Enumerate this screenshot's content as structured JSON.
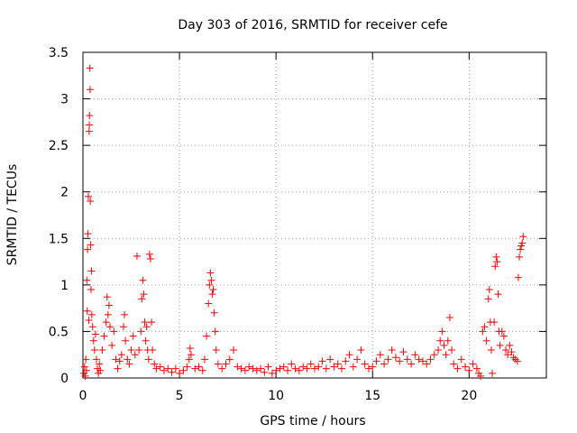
{
  "chart_data": {
    "type": "scatter",
    "title": "Day 303 of 2016, SRMTID for receiver cefe",
    "xlabel": "GPS time / hours",
    "ylabel": "SRMTID / TECUs",
    "xlim": [
      0,
      24
    ],
    "ylim": [
      0,
      3.5
    ],
    "xticks": [
      0,
      5,
      10,
      15,
      20
    ],
    "xtick_labels": [
      "0",
      "5",
      "10",
      "15",
      "20"
    ],
    "yticks": [
      0,
      0.5,
      1,
      1.5,
      2,
      2.5,
      3,
      3.5
    ],
    "ytick_labels": [
      "0",
      "0.5",
      "1",
      "1.5",
      "2",
      "2.5",
      "3",
      "3.5"
    ],
    "grid": true,
    "marker": "+",
    "color": "#ff0000",
    "series": [
      {
        "name": "SRMTID",
        "points": [
          [
            0.05,
            0.05
          ],
          [
            0.08,
            0.12
          ],
          [
            0.12,
            0.02
          ],
          [
            0.15,
            0.2
          ],
          [
            0.18,
            0.08
          ],
          [
            0.2,
            1.05
          ],
          [
            0.22,
            0.72
          ],
          [
            0.24,
            1.38
          ],
          [
            0.26,
            1.55
          ],
          [
            0.28,
            1.95
          ],
          [
            0.3,
            0.62
          ],
          [
            0.32,
            2.65
          ],
          [
            0.33,
            2.72
          ],
          [
            0.34,
            2.82
          ],
          [
            0.36,
            3.33
          ],
          [
            0.37,
            3.1
          ],
          [
            0.38,
            1.9
          ],
          [
            0.4,
            1.43
          ],
          [
            0.42,
            0.95
          ],
          [
            0.44,
            1.15
          ],
          [
            0.46,
            0.68
          ],
          [
            0.5,
            0.55
          ],
          [
            0.55,
            0.4
          ],
          [
            0.6,
            0.3
          ],
          [
            0.65,
            0.47
          ],
          [
            0.7,
            0.2
          ],
          [
            0.75,
            0.1
          ],
          [
            0.8,
            0.05
          ],
          [
            0.85,
            0.15
          ],
          [
            0.9,
            0.08
          ],
          [
            1.0,
            0.3
          ],
          [
            1.1,
            0.45
          ],
          [
            1.2,
            0.6
          ],
          [
            1.25,
            0.87
          ],
          [
            1.3,
            0.68
          ],
          [
            1.35,
            0.78
          ],
          [
            1.4,
            0.55
          ],
          [
            1.5,
            0.35
          ],
          [
            1.6,
            0.5
          ],
          [
            1.7,
            0.2
          ],
          [
            1.8,
            0.1
          ],
          [
            1.9,
            0.18
          ],
          [
            2.0,
            0.25
          ],
          [
            2.1,
            0.55
          ],
          [
            2.15,
            0.68
          ],
          [
            2.2,
            0.4
          ],
          [
            2.3,
            0.2
          ],
          [
            2.4,
            0.15
          ],
          [
            2.5,
            0.3
          ],
          [
            2.6,
            0.45
          ],
          [
            2.7,
            0.25
          ],
          [
            2.8,
            1.31
          ],
          [
            2.9,
            0.3
          ],
          [
            3.0,
            0.5
          ],
          [
            3.05,
            0.85
          ],
          [
            3.1,
            1.05
          ],
          [
            3.15,
            0.9
          ],
          [
            3.2,
            0.6
          ],
          [
            3.25,
            0.4
          ],
          [
            3.3,
            0.55
          ],
          [
            3.35,
            0.3
          ],
          [
            3.4,
            0.2
          ],
          [
            3.45,
            1.33
          ],
          [
            3.5,
            1.28
          ],
          [
            3.55,
            0.6
          ],
          [
            3.6,
            0.3
          ],
          [
            3.7,
            0.15
          ],
          [
            3.8,
            0.1
          ],
          [
            4.0,
            0.12
          ],
          [
            4.2,
            0.08
          ],
          [
            4.4,
            0.1
          ],
          [
            4.6,
            0.06
          ],
          [
            4.8,
            0.1
          ],
          [
            5.0,
            0.05
          ],
          [
            5.2,
            0.08
          ],
          [
            5.4,
            0.12
          ],
          [
            5.5,
            0.2
          ],
          [
            5.55,
            0.32
          ],
          [
            5.6,
            0.25
          ],
          [
            5.8,
            0.1
          ],
          [
            6.0,
            0.12
          ],
          [
            6.2,
            0.08
          ],
          [
            6.3,
            0.2
          ],
          [
            6.4,
            0.45
          ],
          [
            6.5,
            0.8
          ],
          [
            6.55,
            1.0
          ],
          [
            6.6,
            1.13
          ],
          [
            6.65,
            1.05
          ],
          [
            6.7,
            0.9
          ],
          [
            6.75,
            0.95
          ],
          [
            6.8,
            0.7
          ],
          [
            6.85,
            0.5
          ],
          [
            6.9,
            0.3
          ],
          [
            7.0,
            0.15
          ],
          [
            7.2,
            0.1
          ],
          [
            7.4,
            0.15
          ],
          [
            7.6,
            0.2
          ],
          [
            7.8,
            0.3
          ],
          [
            8.0,
            0.12
          ],
          [
            8.2,
            0.1
          ],
          [
            8.4,
            0.08
          ],
          [
            8.6,
            0.12
          ],
          [
            8.8,
            0.1
          ],
          [
            9.0,
            0.08
          ],
          [
            9.2,
            0.1
          ],
          [
            9.4,
            0.06
          ],
          [
            9.6,
            0.12
          ],
          [
            9.8,
            0.05
          ],
          [
            10.0,
            0.08
          ],
          [
            10.2,
            0.1
          ],
          [
            10.4,
            0.12
          ],
          [
            10.6,
            0.08
          ],
          [
            10.8,
            0.15
          ],
          [
            11.0,
            0.1
          ],
          [
            11.2,
            0.08
          ],
          [
            11.4,
            0.12
          ],
          [
            11.6,
            0.1
          ],
          [
            11.8,
            0.15
          ],
          [
            12.0,
            0.1
          ],
          [
            12.2,
            0.12
          ],
          [
            12.4,
            0.18
          ],
          [
            12.6,
            0.1
          ],
          [
            12.8,
            0.2
          ],
          [
            13.0,
            0.12
          ],
          [
            13.2,
            0.15
          ],
          [
            13.4,
            0.1
          ],
          [
            13.6,
            0.18
          ],
          [
            13.8,
            0.25
          ],
          [
            14.0,
            0.12
          ],
          [
            14.2,
            0.2
          ],
          [
            14.4,
            0.3
          ],
          [
            14.6,
            0.15
          ],
          [
            14.8,
            0.1
          ],
          [
            15.0,
            0.12
          ],
          [
            15.2,
            0.18
          ],
          [
            15.4,
            0.25
          ],
          [
            15.6,
            0.15
          ],
          [
            15.8,
            0.2
          ],
          [
            16.0,
            0.3
          ],
          [
            16.2,
            0.22
          ],
          [
            16.4,
            0.18
          ],
          [
            16.6,
            0.28
          ],
          [
            16.8,
            0.2
          ],
          [
            17.0,
            0.15
          ],
          [
            17.2,
            0.25
          ],
          [
            17.4,
            0.2
          ],
          [
            17.6,
            0.18
          ],
          [
            17.8,
            0.15
          ],
          [
            18.0,
            0.2
          ],
          [
            18.2,
            0.25
          ],
          [
            18.4,
            0.3
          ],
          [
            18.5,
            0.4
          ],
          [
            18.6,
            0.5
          ],
          [
            18.7,
            0.35
          ],
          [
            18.8,
            0.25
          ],
          [
            18.9,
            0.4
          ],
          [
            19.0,
            0.65
          ],
          [
            19.1,
            0.3
          ],
          [
            19.2,
            0.15
          ],
          [
            19.4,
            0.1
          ],
          [
            19.6,
            0.2
          ],
          [
            19.8,
            0.12
          ],
          [
            20.0,
            0.08
          ],
          [
            20.2,
            0.15
          ],
          [
            20.4,
            0.1
          ],
          [
            20.5,
            0.05
          ],
          [
            20.6,
            0.02
          ],
          [
            20.7,
            0.5
          ],
          [
            20.8,
            0.55
          ],
          [
            20.9,
            0.4
          ],
          [
            21.0,
            0.85
          ],
          [
            21.05,
            0.95
          ],
          [
            21.1,
            0.6
          ],
          [
            21.15,
            0.3
          ],
          [
            21.2,
            0.05
          ],
          [
            21.3,
            0.6
          ],
          [
            21.35,
            1.2
          ],
          [
            21.4,
            1.3
          ],
          [
            21.45,
            1.25
          ],
          [
            21.5,
            0.9
          ],
          [
            21.55,
            0.5
          ],
          [
            21.6,
            0.35
          ],
          [
            21.7,
            0.5
          ],
          [
            21.8,
            0.45
          ],
          [
            21.9,
            0.3
          ],
          [
            22.0,
            0.25
          ],
          [
            22.1,
            0.35
          ],
          [
            22.2,
            0.28
          ],
          [
            22.3,
            0.22
          ],
          [
            22.4,
            0.2
          ],
          [
            22.5,
            0.18
          ],
          [
            22.55,
            1.08
          ],
          [
            22.6,
            1.3
          ],
          [
            22.65,
            1.38
          ],
          [
            22.7,
            1.42
          ],
          [
            22.75,
            1.45
          ],
          [
            22.8,
            1.52
          ]
        ]
      }
    ]
  }
}
